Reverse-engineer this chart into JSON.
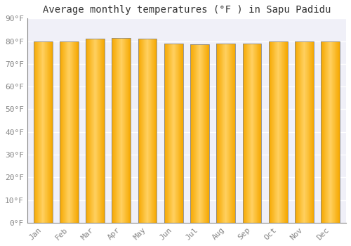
{
  "title": "Average monthly temperatures (°F ) in Sapu Padidu",
  "months": [
    "Jan",
    "Feb",
    "Mar",
    "Apr",
    "May",
    "Jun",
    "Jul",
    "Aug",
    "Sep",
    "Oct",
    "Nov",
    "Dec"
  ],
  "values": [
    80.0,
    80.0,
    81.0,
    81.5,
    81.0,
    79.0,
    78.5,
    79.0,
    79.0,
    80.0,
    80.0,
    80.0
  ],
  "bar_color_left": "#F5A800",
  "bar_color_center": "#FFD060",
  "bar_color_right": "#F5A800",
  "bar_edge_color": "#555555",
  "background_color": "#ffffff",
  "plot_bg_color": "#f0f0f8",
  "grid_color": "#ffffff",
  "ytick_labels": [
    "0°F",
    "10°F",
    "20°F",
    "30°F",
    "40°F",
    "50°F",
    "60°F",
    "70°F",
    "80°F",
    "90°F"
  ],
  "ytick_values": [
    0,
    10,
    20,
    30,
    40,
    50,
    60,
    70,
    80,
    90
  ],
  "ylim": [
    0,
    90
  ],
  "title_fontsize": 10,
  "tick_fontsize": 8,
  "title_font": "monospace",
  "tick_font": "monospace",
  "tick_color": "#888888"
}
